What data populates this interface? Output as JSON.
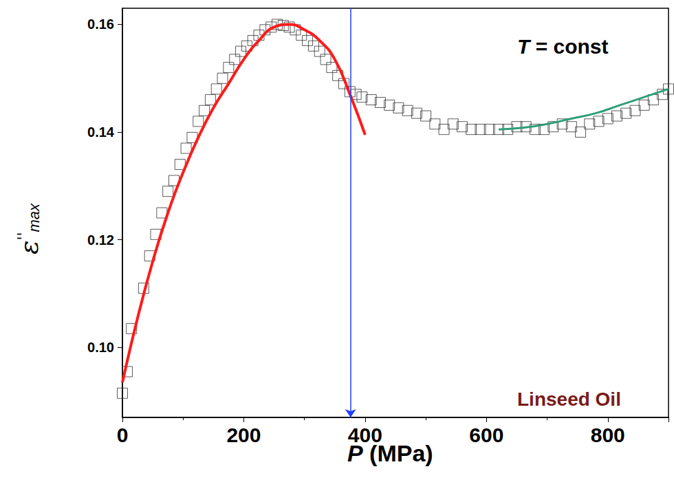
{
  "chart_data": {
    "type": "scatter",
    "xlabel": "P (MPa)",
    "ylabel": "ε''max",
    "annotations": [
      "T = const",
      "Linseed Oil"
    ],
    "xlim": [
      0,
      900
    ],
    "xticks": [
      0,
      200,
      400,
      600,
      800
    ],
    "ylim": [
      0.087,
      0.163
    ],
    "yticks": [
      {
        "value": 0.1,
        "label": "0.10"
      },
      0.12,
      0.14,
      0.16
    ],
    "grid": false,
    "vertical_line": {
      "x": 376,
      "color": "#1f3fff"
    },
    "series": [
      {
        "type": "scatter",
        "marker": "square",
        "color": "#333333",
        "x": [
          0,
          8,
          15,
          35,
          45,
          55,
          65,
          75,
          85,
          95,
          105,
          115,
          125,
          135,
          145,
          155,
          165,
          175,
          185,
          195,
          205,
          215,
          225,
          235,
          245,
          255,
          265,
          275,
          285,
          295,
          305,
          315,
          325,
          335,
          345,
          355,
          365,
          375,
          385,
          395,
          410,
          425,
          440,
          455,
          470,
          485,
          500,
          515,
          530,
          545,
          560,
          575,
          590,
          605,
          620,
          635,
          650,
          665,
          680,
          695,
          710,
          725,
          740,
          755,
          770,
          785,
          800,
          815,
          830,
          845,
          860,
          875,
          890,
          900
        ],
        "values": [
          0.0915,
          0.0955,
          0.1035,
          0.111,
          0.117,
          0.121,
          0.125,
          0.129,
          0.131,
          0.134,
          0.137,
          0.139,
          0.142,
          0.144,
          0.146,
          0.148,
          0.15,
          0.152,
          0.1535,
          0.155,
          0.156,
          0.157,
          0.158,
          0.159,
          0.1595,
          0.16,
          0.1598,
          0.1595,
          0.159,
          0.158,
          0.157,
          0.156,
          0.155,
          0.1535,
          0.152,
          0.1505,
          0.149,
          0.1475,
          0.147,
          0.1465,
          0.146,
          0.1455,
          0.145,
          0.1445,
          0.144,
          0.1435,
          0.143,
          0.1415,
          0.1405,
          0.1415,
          0.141,
          0.1405,
          0.1405,
          0.1405,
          0.1405,
          0.1405,
          0.141,
          0.141,
          0.1405,
          0.1405,
          0.141,
          0.1415,
          0.141,
          0.14,
          0.1415,
          0.142,
          0.1425,
          0.143,
          0.1435,
          0.144,
          0.145,
          0.146,
          0.147,
          0.148
        ]
      },
      {
        "type": "line",
        "line_style": "solid",
        "color": "#ff1a1a",
        "x": [
          0,
          25,
          50,
          75,
          100,
          125,
          150,
          175,
          200,
          225,
          250,
          275,
          300,
          325,
          350,
          375,
          400
        ],
        "values": [
          0.0935,
          0.1055,
          0.116,
          0.125,
          0.1325,
          0.139,
          0.1445,
          0.149,
          0.1535,
          0.157,
          0.1595,
          0.16,
          0.159,
          0.157,
          0.1535,
          0.147,
          0.1395
        ]
      },
      {
        "type": "line",
        "line_style": "solid",
        "color": "#2e9e7a",
        "x": [
          620,
          660,
          700,
          740,
          780,
          820,
          860,
          900
        ],
        "values": [
          0.1405,
          0.1408,
          0.1415,
          0.1425,
          0.1435,
          0.145,
          0.1465,
          0.148
        ]
      }
    ]
  }
}
